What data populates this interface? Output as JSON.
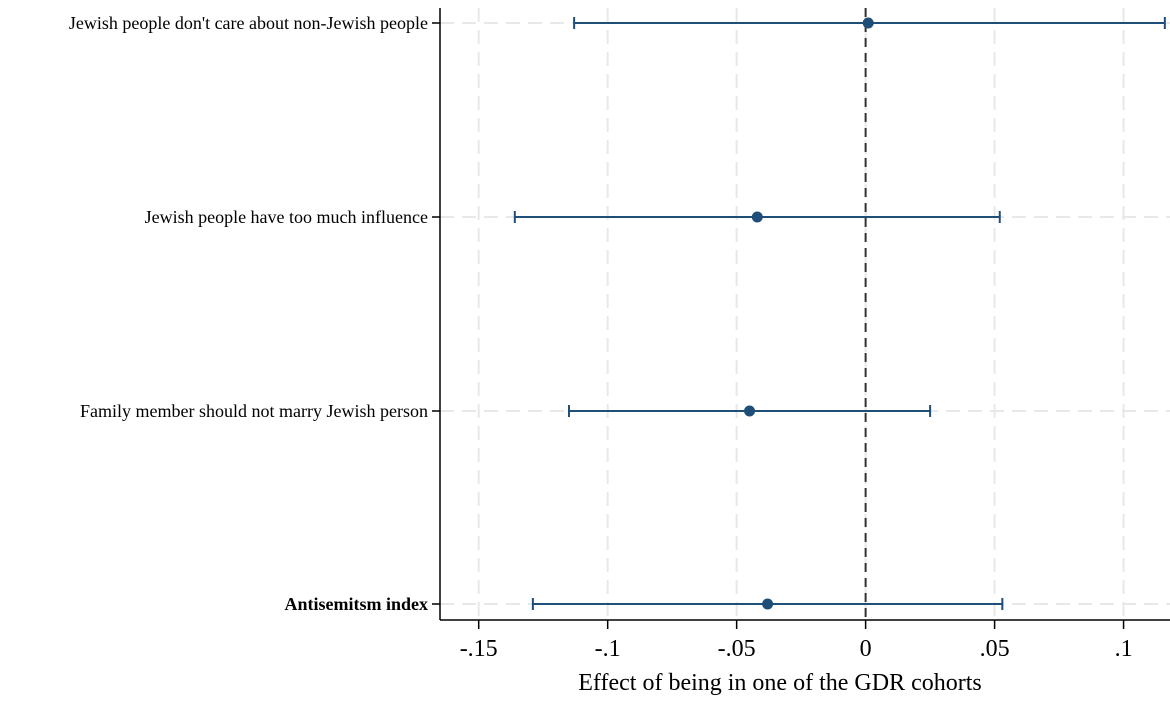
{
  "chart_data": {
    "type": "scatter",
    "subtype": "coefficient-plot",
    "title": "",
    "xlabel": "Effect of being in one of the GDR cohorts",
    "ylabel": "",
    "xlim": [
      -0.165,
      0.118
    ],
    "xticks": [
      -0.15,
      -0.1,
      -0.05,
      0,
      0.05,
      0.1
    ],
    "xtick_labels": [
      "-.15",
      "-.1",
      "-.05",
      "0",
      ".05",
      ".1"
    ],
    "grid": true,
    "reference_line": 0,
    "categories": [
      "Jewish people don't care about non-Jewish people",
      "Jewish people have too much influence",
      "Family member should not marry Jewish person",
      "Antisemitsm index"
    ],
    "bold_categories": [
      "Antisemitsm index"
    ],
    "estimates": [
      0.001,
      -0.042,
      -0.045,
      -0.038
    ],
    "ci_low": [
      -0.113,
      -0.136,
      -0.115,
      -0.129
    ],
    "ci_high": [
      0.116,
      0.052,
      0.025,
      0.053
    ],
    "colors": {
      "marker": "#1f4e79",
      "grid": "#e8e8e8",
      "axis": "#000000",
      "reference": "#333333"
    }
  }
}
